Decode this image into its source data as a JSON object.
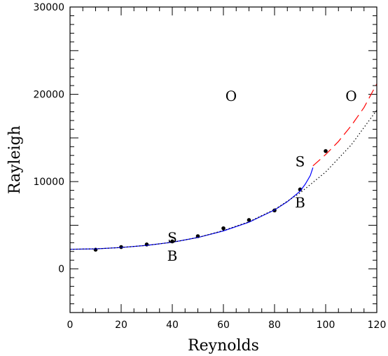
{
  "chart_data": {
    "type": "line",
    "title": "",
    "xlabel": "Reynolds",
    "ylabel": "Rayleigh",
    "xlim": [
      0,
      120
    ],
    "ylim": [
      -5000,
      30000
    ],
    "xticks": [
      0,
      20,
      40,
      60,
      80,
      100,
      120
    ],
    "xtick_labels": [
      "0",
      "20",
      "40",
      "60",
      "80",
      "100",
      "120"
    ],
    "yticks": [
      0,
      10000,
      20000,
      30000
    ],
    "ytick_labels": [
      "0",
      "10000",
      "20000",
      "30000"
    ],
    "grid": false,
    "series": [
      {
        "style": "points",
        "color": "#000000",
        "x": [
          10,
          20,
          30,
          40,
          50,
          60,
          70,
          80,
          90,
          100
        ],
        "y": [
          2200,
          2500,
          2800,
          3150,
          3750,
          4650,
          5600,
          6700,
          9100,
          13500
        ]
      },
      {
        "style": "solid",
        "color": "#0000ff",
        "x": [
          0,
          10,
          20,
          30,
          40,
          50,
          60,
          70,
          80,
          85,
          90,
          92,
          94,
          95
        ],
        "y": [
          2250,
          2300,
          2450,
          2700,
          3050,
          3600,
          4350,
          5350,
          6750,
          7700,
          8900,
          9700,
          10700,
          11600
        ]
      },
      {
        "style": "dotted",
        "color": "#000000",
        "x": [
          0,
          10,
          20,
          30,
          40,
          50,
          60,
          70,
          80,
          90,
          100,
          110,
          120
        ],
        "y": [
          2250,
          2300,
          2450,
          2700,
          3050,
          3600,
          4400,
          5400,
          6800,
          8700,
          11100,
          14200,
          18200
        ]
      },
      {
        "style": "dashed",
        "color": "#ff0000",
        "x": [
          95,
          100,
          105,
          110,
          115,
          120
        ],
        "y": [
          11800,
          13100,
          14600,
          16400,
          18500,
          21200
        ]
      }
    ],
    "annotations": [
      {
        "text": "O",
        "x": 63,
        "y": 19800
      },
      {
        "text": "O",
        "x": 110,
        "y": 19800
      },
      {
        "text": "S",
        "x": 40,
        "y": 3600
      },
      {
        "text": "B",
        "x": 40,
        "y": 1500
      },
      {
        "text": "S",
        "x": 90,
        "y": 12300
      },
      {
        "text": "B",
        "x": 90,
        "y": 7600
      }
    ]
  }
}
